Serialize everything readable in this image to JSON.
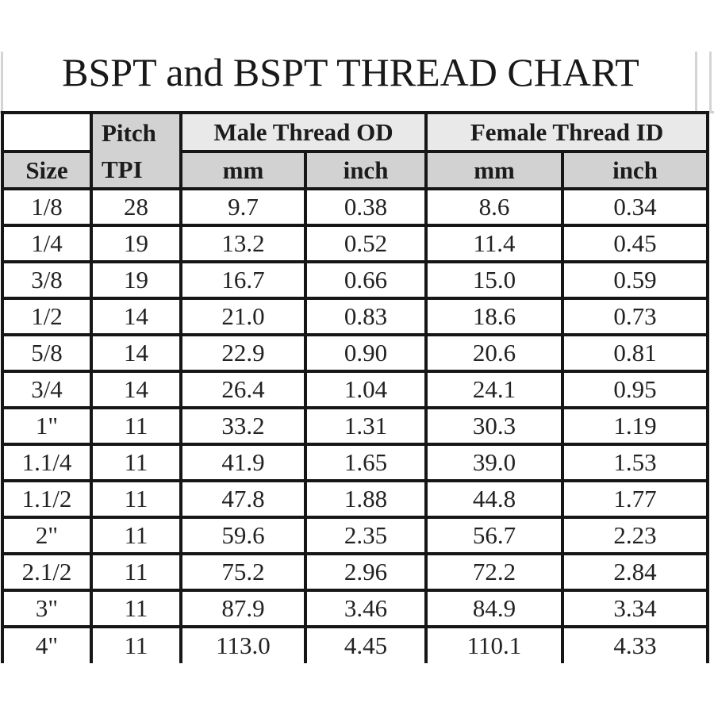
{
  "page": {
    "title": "BSPT and BSPT THREAD CHART"
  },
  "table": {
    "pitch_header": {
      "line1": "Pitch",
      "line2": "TPI"
    },
    "size_header": "Size",
    "group_headers": {
      "male": "Male Thread OD",
      "female": "Female Thread ID"
    },
    "unit_headers": {
      "male_mm": "mm",
      "male_inch": "inch",
      "female_mm": "mm",
      "female_inch": "inch"
    },
    "columns_note": "Size | Pitch TPI | Male OD mm | Male OD inch | Female ID mm | Female ID inch"
  },
  "chart_data": {
    "type": "table",
    "title": "BSPT and BSPT THREAD CHART",
    "columns": [
      "Size",
      "Pitch TPI",
      "Male Thread OD mm",
      "Male Thread OD inch",
      "Female Thread ID mm",
      "Female Thread ID inch"
    ],
    "rows": [
      [
        "1/8",
        "28",
        "9.7",
        "0.38",
        "8.6",
        "0.34"
      ],
      [
        "1/4",
        "19",
        "13.2",
        "0.52",
        "11.4",
        "0.45"
      ],
      [
        "3/8",
        "19",
        "16.7",
        "0.66",
        "15.0",
        "0.59"
      ],
      [
        "1/2",
        "14",
        "21.0",
        "0.83",
        "18.6",
        "0.73"
      ],
      [
        "5/8",
        "14",
        "22.9",
        "0.90",
        "20.6",
        "0.81"
      ],
      [
        "3/4",
        "14",
        "26.4",
        "1.04",
        "24.1",
        "0.95"
      ],
      [
        "1\"",
        "11",
        "33.2",
        "1.31",
        "30.3",
        "1.19"
      ],
      [
        "1.1/4",
        "11",
        "41.9",
        "1.65",
        "39.0",
        "1.53"
      ],
      [
        "1.1/2",
        "11",
        "47.8",
        "1.88",
        "44.8",
        "1.77"
      ],
      [
        "2\"",
        "11",
        "59.6",
        "2.35",
        "56.7",
        "2.23"
      ],
      [
        "2.1/2",
        "11",
        "75.2",
        "2.96",
        "72.2",
        "2.84"
      ],
      [
        "3\"",
        "11",
        "87.9",
        "3.46",
        "84.9",
        "3.34"
      ],
      [
        "4\"",
        "11",
        "113.0",
        "4.45",
        "110.1",
        "4.33"
      ]
    ]
  },
  "colors": {
    "sub_header_gray": "#d2d2d2",
    "group_header_gray": "#e9e9e9",
    "border_black": "#161616",
    "rule_gray": "#cfcfcf",
    "text": "#1c1c1c",
    "background": "#ffffff"
  }
}
